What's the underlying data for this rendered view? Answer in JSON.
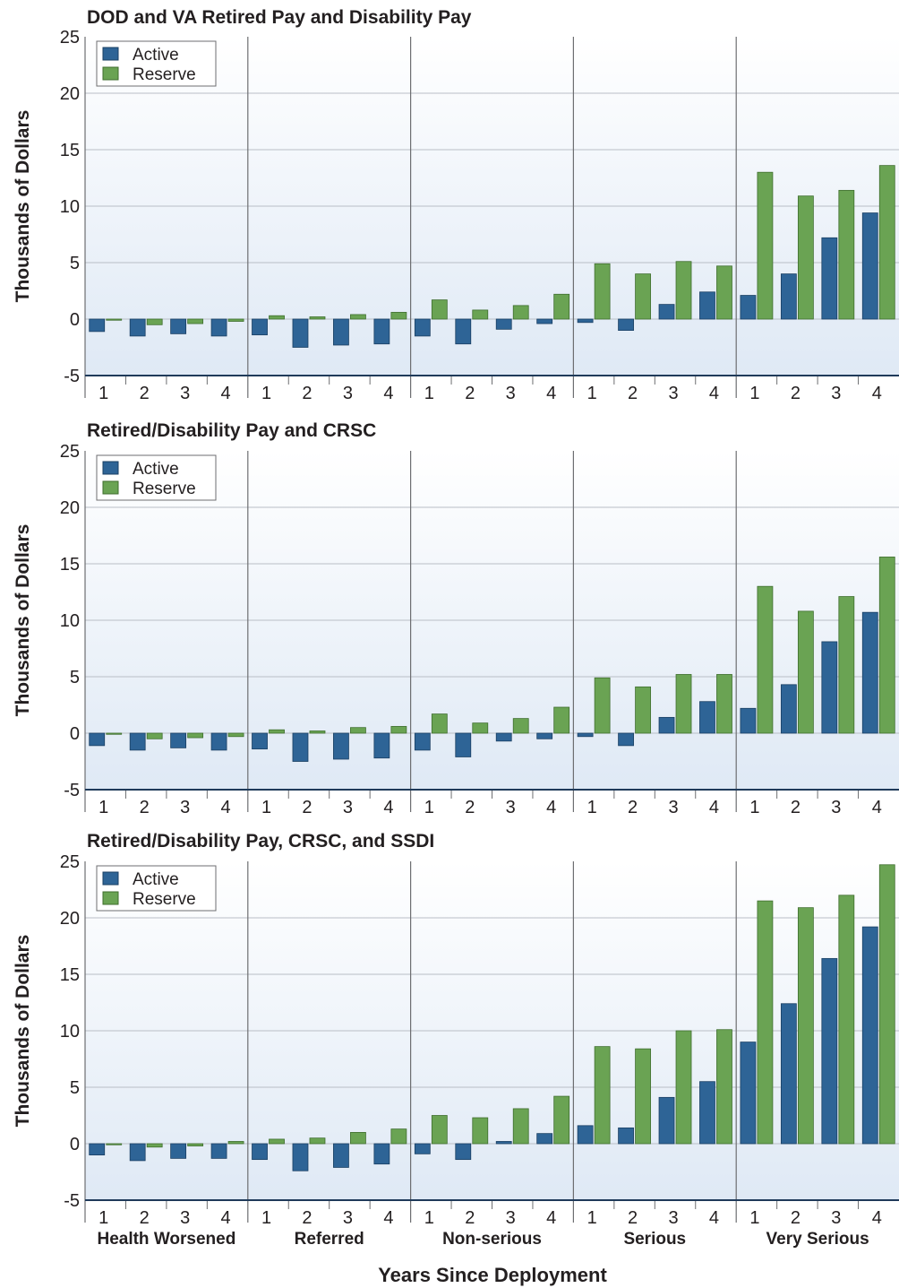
{
  "colors": {
    "active": "#2e6496",
    "active_edge": "#1a3f63",
    "reserve": "#6aa353",
    "reserve_edge": "#3f6e2e",
    "grid": "#b9bec6",
    "axis": "#1f3a5a",
    "bg_top": "#ffffff",
    "bg_bottom": "#dfe9f5"
  },
  "figure": {
    "xlabel": "Years Since Deployment",
    "ylabel": "Thousands of Dollars"
  },
  "chart_data": [
    {
      "type": "bar",
      "title": "DOD and VA Retired Pay and Disability Pay",
      "ylabel": "Thousands of Dollars",
      "xlabel": "Years Since Deployment",
      "ylim": [
        -5,
        25
      ],
      "yticks": [
        -5,
        0,
        5,
        10,
        15,
        20,
        25
      ],
      "groups": [
        "Health Worsened",
        "Referred",
        "Non-serious",
        "Serious",
        "Very Serious"
      ],
      "categories": [
        "1",
        "2",
        "3",
        "4"
      ],
      "legend": "top-left",
      "grid": true,
      "series": [
        {
          "name": "Active",
          "values": [
            [
              -1.1,
              -1.5,
              -1.3,
              -1.5
            ],
            [
              -1.4,
              -2.5,
              -2.3,
              -2.2
            ],
            [
              -1.5,
              -2.2,
              -0.9,
              -0.4
            ],
            [
              -0.3,
              -1.0,
              1.3,
              2.4
            ],
            [
              2.1,
              4.0,
              7.2,
              9.4
            ]
          ]
        },
        {
          "name": "Reserve",
          "values": [
            [
              -0.1,
              -0.5,
              -0.4,
              -0.2
            ],
            [
              0.3,
              0.2,
              0.4,
              0.6
            ],
            [
              1.7,
              0.8,
              1.2,
              2.2
            ],
            [
              4.9,
              4.0,
              5.1,
              4.7
            ],
            [
              13.0,
              10.9,
              11.4,
              13.6
            ]
          ]
        }
      ]
    },
    {
      "type": "bar",
      "title": "Retired/Disability Pay and CRSC",
      "ylabel": "Thousands of Dollars",
      "xlabel": "Years Since Deployment",
      "ylim": [
        -5,
        25
      ],
      "yticks": [
        -5,
        0,
        5,
        10,
        15,
        20,
        25
      ],
      "groups": [
        "Health Worsened",
        "Referred",
        "Non-serious",
        "Serious",
        "Very Serious"
      ],
      "categories": [
        "1",
        "2",
        "3",
        "4"
      ],
      "legend": "top-left",
      "grid": true,
      "series": [
        {
          "name": "Active",
          "values": [
            [
              -1.1,
              -1.5,
              -1.3,
              -1.5
            ],
            [
              -1.4,
              -2.5,
              -2.3,
              -2.2
            ],
            [
              -1.5,
              -2.1,
              -0.7,
              -0.5
            ],
            [
              -0.3,
              -1.1,
              1.4,
              2.8
            ],
            [
              2.2,
              4.3,
              8.1,
              10.7
            ]
          ]
        },
        {
          "name": "Reserve",
          "values": [
            [
              -0.1,
              -0.5,
              -0.4,
              -0.3
            ],
            [
              0.3,
              0.2,
              0.5,
              0.6
            ],
            [
              1.7,
              0.9,
              1.3,
              2.3
            ],
            [
              4.9,
              4.1,
              5.2,
              5.2
            ],
            [
              13.0,
              10.8,
              12.1,
              15.6
            ]
          ]
        }
      ]
    },
    {
      "type": "bar",
      "title": "Retired/Disability Pay, CRSC, and SSDI",
      "ylabel": "Thousands of Dollars",
      "xlabel": "Years Since Deployment",
      "ylim": [
        -5,
        25
      ],
      "yticks": [
        -5,
        0,
        5,
        10,
        15,
        20,
        25
      ],
      "groups": [
        "Health Worsened",
        "Referred",
        "Non-serious",
        "Serious",
        "Very Serious"
      ],
      "categories": [
        "1",
        "2",
        "3",
        "4"
      ],
      "legend": "top-left",
      "grid": true,
      "series": [
        {
          "name": "Active",
          "values": [
            [
              -1.0,
              -1.5,
              -1.3,
              -1.3
            ],
            [
              -1.4,
              -2.4,
              -2.1,
              -1.8
            ],
            [
              -0.9,
              -1.4,
              0.2,
              0.9
            ],
            [
              1.6,
              1.4,
              4.1,
              5.5
            ],
            [
              9.0,
              12.4,
              16.4,
              19.2
            ]
          ]
        },
        {
          "name": "Reserve",
          "values": [
            [
              -0.1,
              -0.3,
              -0.2,
              0.2
            ],
            [
              0.4,
              0.5,
              1.0,
              1.3
            ],
            [
              2.5,
              2.3,
              3.1,
              4.2
            ],
            [
              8.6,
              8.4,
              10.0,
              10.1
            ],
            [
              21.5,
              20.9,
              22.0,
              24.7
            ]
          ]
        }
      ]
    }
  ]
}
